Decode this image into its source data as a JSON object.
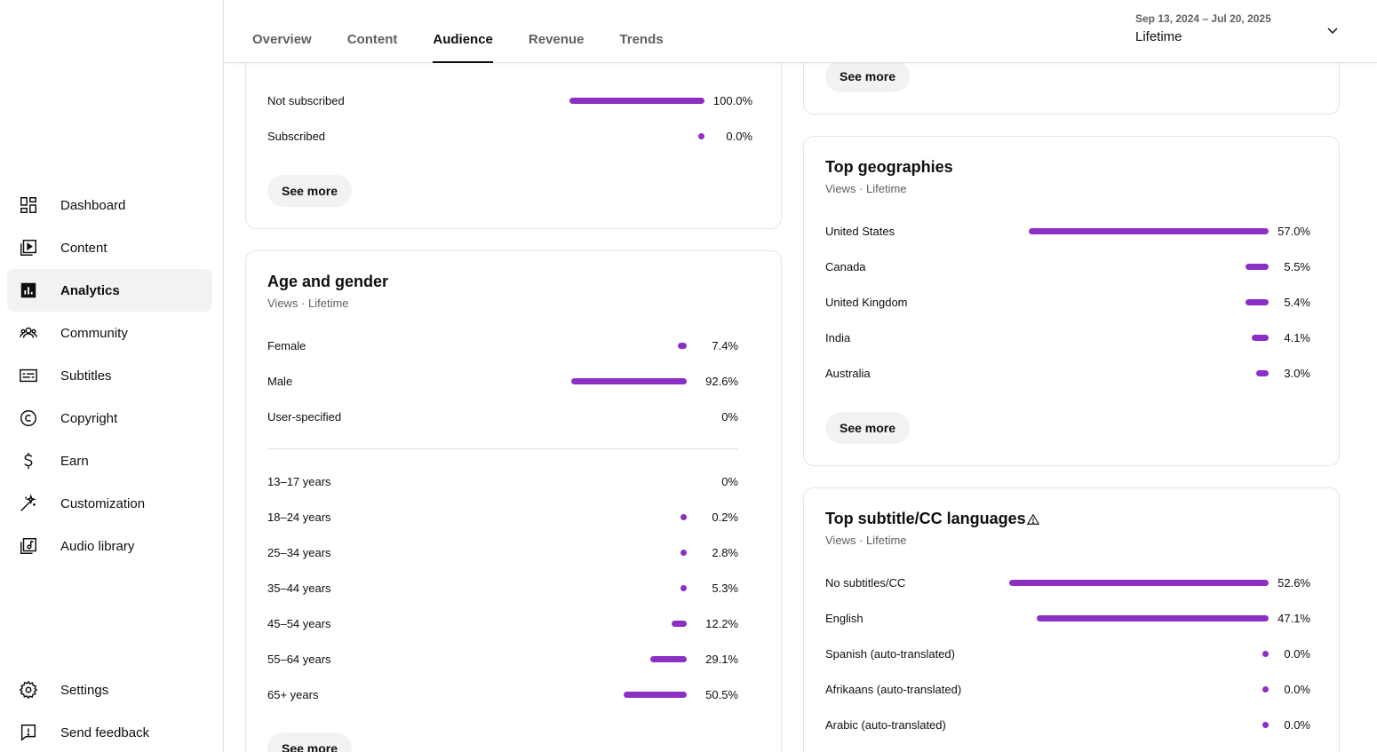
{
  "sidebar": {
    "items": [
      {
        "label": "Dashboard",
        "icon": "dashboard-icon"
      },
      {
        "label": "Content",
        "icon": "content-icon"
      },
      {
        "label": "Analytics",
        "icon": "analytics-icon",
        "active": true
      },
      {
        "label": "Community",
        "icon": "community-icon"
      },
      {
        "label": "Subtitles",
        "icon": "subtitles-icon"
      },
      {
        "label": "Copyright",
        "icon": "copyright-icon"
      },
      {
        "label": "Earn",
        "icon": "dollar-icon"
      },
      {
        "label": "Customization",
        "icon": "magic-wand-icon"
      },
      {
        "label": "Audio library",
        "icon": "audio-library-icon"
      }
    ],
    "footer": [
      {
        "label": "Settings",
        "icon": "gear-icon"
      },
      {
        "label": "Send feedback",
        "icon": "feedback-icon"
      }
    ]
  },
  "header": {
    "tabs": [
      "Overview",
      "Content",
      "Audience",
      "Revenue",
      "Trends"
    ],
    "active_tab": "Audience",
    "date_range": "Sep 13, 2024 – Jul 20, 2025",
    "date_value": "Lifetime"
  },
  "subscription_card": {
    "rows": [
      {
        "label": "Not subscribed",
        "value": "100.0%",
        "pct": 100
      },
      {
        "label": "Subscribed",
        "value": "0.0%",
        "pct": 0
      }
    ],
    "see_more": "See more"
  },
  "age_gender_card": {
    "title": "Age and gender",
    "subtitle": "Views · Lifetime",
    "gender": [
      {
        "label": "Female",
        "value": "7.4%",
        "pct": 7.4
      },
      {
        "label": "Male",
        "value": "92.6%",
        "pct": 92.6
      },
      {
        "label": "User-specified",
        "value": "0%",
        "pct": null
      }
    ],
    "ages": [
      {
        "label": "13–17 years",
        "value": "0%",
        "pct": null
      },
      {
        "label": "18–24 years",
        "value": "0.2%",
        "pct": 0.2
      },
      {
        "label": "25–34 years",
        "value": "2.8%",
        "pct": 2.8
      },
      {
        "label": "35–44 years",
        "value": "5.3%",
        "pct": 5.3
      },
      {
        "label": "45–54 years",
        "value": "12.2%",
        "pct": 12.2
      },
      {
        "label": "55–64 years",
        "value": "29.1%",
        "pct": 29.1
      },
      {
        "label": "65+ years",
        "value": "50.5%",
        "pct": 50.5
      }
    ],
    "see_more": "See more"
  },
  "top_card": {
    "see_more": "See more"
  },
  "geo_card": {
    "title": "Top geographies",
    "subtitle": "Views · Lifetime",
    "rows": [
      {
        "label": "United States",
        "value": "57.0%",
        "pct": 57.0
      },
      {
        "label": "Canada",
        "value": "5.5%",
        "pct": 5.5
      },
      {
        "label": "United Kingdom",
        "value": "5.4%",
        "pct": 5.4
      },
      {
        "label": "India",
        "value": "4.1%",
        "pct": 4.1
      },
      {
        "label": "Australia",
        "value": "3.0%",
        "pct": 3.0
      }
    ],
    "see_more": "See more"
  },
  "subtitle_card": {
    "title": "Top subtitle/CC languages",
    "subtitle": "Views · Lifetime",
    "rows": [
      {
        "label": "No subtitles/CC",
        "value": "52.6%",
        "pct": 52.6
      },
      {
        "label": "English",
        "value": "47.1%",
        "pct": 47.1
      },
      {
        "label": "Spanish (auto-translated)",
        "value": "0.0%",
        "pct": 0
      },
      {
        "label": "Afrikaans (auto-translated)",
        "value": "0.0%",
        "pct": 0
      },
      {
        "label": "Arabic (auto-translated)",
        "value": "0.0%",
        "pct": 0
      }
    ]
  },
  "colors": {
    "bar": "#8c2fc4"
  }
}
